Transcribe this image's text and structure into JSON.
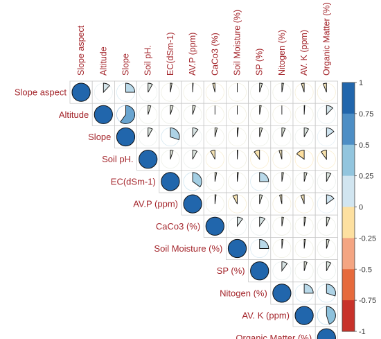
{
  "chart_data": {
    "type": "heatmap",
    "subtype": "correlation-pie-upper",
    "variables": [
      "Slope aspect",
      "Altitude",
      "Slope",
      "Soil pH.",
      "EC(dSm-1)",
      "AV.P (ppm)",
      "CaCo3 (%)",
      "Soil Moisture (%)",
      "SP (%)",
      "Nitogen (%)",
      "AV. K (ppm)",
      "Organic Matter (%)"
    ],
    "matrix": [
      [
        1,
        0.12,
        0.25,
        0.08,
        0.03,
        0.01,
        -0.04,
        0.0,
        0.05,
        0.03,
        -0.05,
        -0.06
      ],
      [
        0.12,
        1,
        0.6,
        0.05,
        0.05,
        0.05,
        0.0,
        0.0,
        0.03,
        0.0,
        0.01,
        0.12
      ],
      [
        0.25,
        0.6,
        1,
        0.08,
        0.3,
        0.1,
        0.04,
        0.02,
        0.05,
        0.06,
        0.08,
        0.15
      ],
      [
        0.08,
        0.05,
        0.08,
        1,
        0.05,
        0.08,
        -0.08,
        0.01,
        -0.1,
        -0.05,
        -0.15,
        -0.1
      ],
      [
        0.03,
        0.05,
        0.3,
        0.05,
        1,
        0.35,
        0.03,
        0.02,
        0.25,
        0.03,
        0.05,
        0.08
      ],
      [
        0.01,
        0.05,
        0.1,
        0.08,
        0.35,
        1,
        0.02,
        -0.08,
        0.05,
        -0.04,
        -0.06,
        0.15
      ],
      [
        -0.04,
        0.0,
        0.04,
        -0.08,
        0.03,
        0.02,
        1,
        0.1,
        0.1,
        0.03,
        0.03,
        0.06
      ],
      [
        0.0,
        0.0,
        0.02,
        0.01,
        0.02,
        -0.08,
        0.1,
        1,
        0.25,
        0.02,
        0.02,
        0.05
      ],
      [
        0.05,
        0.03,
        0.05,
        -0.1,
        0.25,
        0.05,
        0.1,
        0.25,
        1,
        0.1,
        0.05,
        0.08
      ],
      [
        0.03,
        0.0,
        0.06,
        -0.05,
        0.03,
        -0.04,
        0.03,
        0.02,
        0.1,
        1,
        0.25,
        0.3
      ],
      [
        -0.05,
        0.01,
        0.08,
        -0.15,
        0.05,
        -0.06,
        0.03,
        0.02,
        0.05,
        0.25,
        1,
        0.45
      ],
      [
        -0.06,
        0.12,
        0.15,
        -0.1,
        0.08,
        0.15,
        0.06,
        0.05,
        0.08,
        0.3,
        0.45,
        1
      ]
    ],
    "colorbar": {
      "ticks": [
        "1",
        "0.75",
        "0.5",
        "0.25",
        "0",
        "-0.25",
        "-0.5",
        "-0.75",
        "-1"
      ],
      "colors": [
        "#2166ac",
        "#4d8ec5",
        "#92c5de",
        "#d1e5f0",
        "#fde0a0",
        "#f4a582",
        "#e66a3c",
        "#c8322a"
      ],
      "range": [
        -1,
        1
      ]
    },
    "label_color": "#a4262c"
  }
}
